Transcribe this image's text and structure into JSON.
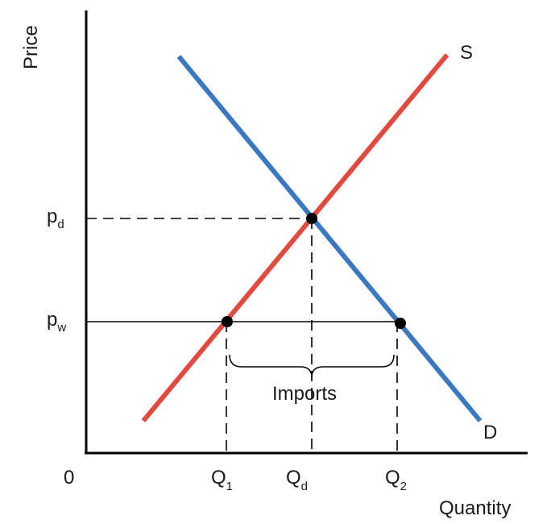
{
  "labels": {
    "y_axis": "Price",
    "x_axis": "Quantity",
    "origin": "0",
    "supply": "S",
    "demand": "D",
    "imports": "Imports",
    "pd": {
      "main": "p",
      "sub": "d"
    },
    "pw": {
      "main": "p",
      "sub": "w"
    },
    "q1": {
      "main": "Q",
      "sub": "1"
    },
    "qd": {
      "main": "Q",
      "sub": "d"
    },
    "q2": {
      "main": "Q",
      "sub": "2"
    }
  },
  "colors": {
    "supply": "#e04a3f",
    "demand": "#3a78c2",
    "axis": "#000000"
  }
}
